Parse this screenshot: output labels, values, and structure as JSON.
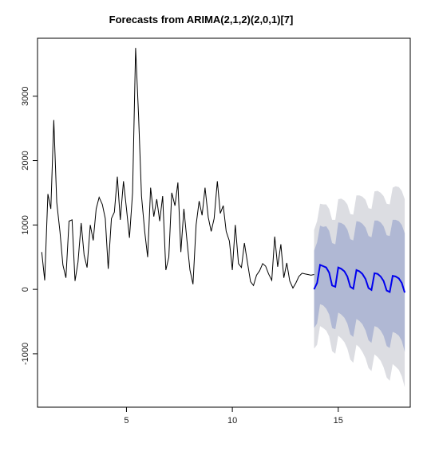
{
  "chart_data": {
    "type": "line",
    "title": "Forecasts from ARIMA(2,1,2)(2,0,1)[7]",
    "xlabel": "",
    "ylabel": "",
    "xlim": [
      0.8,
      18.4
    ],
    "ylim": [
      -1830,
      3900
    ],
    "x_ticks": [
      5,
      10,
      15
    ],
    "y_ticks": [
      -1000,
      0,
      1000,
      2000,
      3000
    ],
    "grid": false,
    "colors": {
      "history": "#000000",
      "forecast": "#0000ee",
      "band_80": "#b0b8d4",
      "band_95": "#dcdde2"
    },
    "history": {
      "x": [
        1.0,
        1.14,
        1.29,
        1.43,
        1.57,
        1.71,
        1.86,
        2.0,
        2.14,
        2.29,
        2.43,
        2.57,
        2.71,
        2.86,
        3.0,
        3.14,
        3.29,
        3.43,
        3.57,
        3.71,
        3.86,
        4.0,
        4.14,
        4.29,
        4.43,
        4.57,
        4.71,
        4.86,
        5.0,
        5.14,
        5.29,
        5.43,
        5.57,
        5.71,
        5.86,
        6.0,
        6.14,
        6.29,
        6.43,
        6.57,
        6.71,
        6.86,
        7.0,
        7.14,
        7.29,
        7.43,
        7.57,
        7.71,
        7.86,
        8.0,
        8.14,
        8.29,
        8.43,
        8.57,
        8.71,
        8.86,
        9.0,
        9.14,
        9.29,
        9.43,
        9.57,
        9.71,
        9.86,
        10.0,
        10.14,
        10.29,
        10.43,
        10.57,
        10.71,
        10.86,
        11.0,
        11.14,
        11.29,
        11.43,
        11.57,
        11.71,
        11.86,
        12.0,
        12.14,
        12.29,
        12.43,
        12.57,
        12.71,
        12.86,
        13.0,
        13.14,
        13.29,
        13.43,
        13.57,
        13.71,
        13.86
      ],
      "y": [
        580,
        140,
        1480,
        1250,
        2630,
        1350,
        900,
        380,
        180,
        1060,
        1080,
        130,
        420,
        1030,
        530,
        340,
        1000,
        760,
        1250,
        1430,
        1320,
        1100,
        320,
        1100,
        1200,
        1750,
        1080,
        1680,
        1260,
        800,
        1500,
        3750,
        2700,
        1450,
        900,
        500,
        1580,
        1130,
        1400,
        1060,
        1450,
        300,
        500,
        1500,
        1300,
        1660,
        580,
        1250,
        750,
        300,
        80,
        1000,
        1370,
        1150,
        1580,
        1120,
        900,
        1100,
        1680,
        1180,
        1300,
        900,
        750,
        300,
        1000,
        400,
        340,
        720,
        420,
        120,
        60,
        220,
        290,
        400,
        360,
        240,
        140,
        820,
        350,
        700,
        180,
        410,
        130,
        20,
        100,
        200,
        250,
        240,
        230,
        220,
        230
      ]
    },
    "forecast": {
      "x": [
        13.86,
        14.0,
        14.14,
        14.29,
        14.43,
        14.57,
        14.71,
        14.86,
        15.0,
        15.14,
        15.29,
        15.43,
        15.57,
        15.71,
        15.86,
        16.0,
        16.14,
        16.29,
        16.43,
        16.57,
        16.71,
        16.86,
        17.0,
        17.14,
        17.29,
        17.43,
        17.57,
        17.71,
        17.86,
        18.0,
        18.14
      ],
      "mean": [
        0,
        100,
        380,
        360,
        340,
        260,
        60,
        40,
        340,
        320,
        280,
        200,
        40,
        10,
        300,
        280,
        240,
        160,
        20,
        -10,
        250,
        240,
        200,
        130,
        -20,
        -40,
        210,
        200,
        170,
        100,
        -50
      ],
      "lo80": [
        -600,
        -530,
        -230,
        -250,
        -300,
        -390,
        -600,
        -620,
        -360,
        -390,
        -440,
        -530,
        -700,
        -740,
        -460,
        -490,
        -540,
        -640,
        -790,
        -830,
        -570,
        -590,
        -640,
        -720,
        -880,
        -910,
        -660,
        -680,
        -720,
        -800,
        -970
      ],
      "hi80": [
        600,
        730,
        990,
        970,
        980,
        910,
        720,
        700,
        1040,
        1030,
        1000,
        930,
        780,
        760,
        1060,
        1050,
        1020,
        960,
        830,
        810,
        1070,
        1070,
        1040,
        980,
        840,
        830,
        1080,
        1080,
        1060,
        1000,
        870
      ],
      "lo95": [
        -920,
        -860,
        -570,
        -600,
        -640,
        -730,
        -960,
        -1000,
        -720,
        -760,
        -820,
        -920,
        -1090,
        -1140,
        -860,
        -900,
        -970,
        -1070,
        -1220,
        -1270,
        -1010,
        -1050,
        -1110,
        -1210,
        -1370,
        -1420,
        -1160,
        -1200,
        -1250,
        -1350,
        -1520
      ],
      "hi95": [
        920,
        1060,
        1330,
        1320,
        1320,
        1250,
        1080,
        1080,
        1400,
        1410,
        1380,
        1320,
        1170,
        1160,
        1460,
        1460,
        1440,
        1390,
        1260,
        1250,
        1520,
        1530,
        1500,
        1450,
        1330,
        1320,
        1580,
        1600,
        1590,
        1530,
        1400
      ]
    }
  }
}
